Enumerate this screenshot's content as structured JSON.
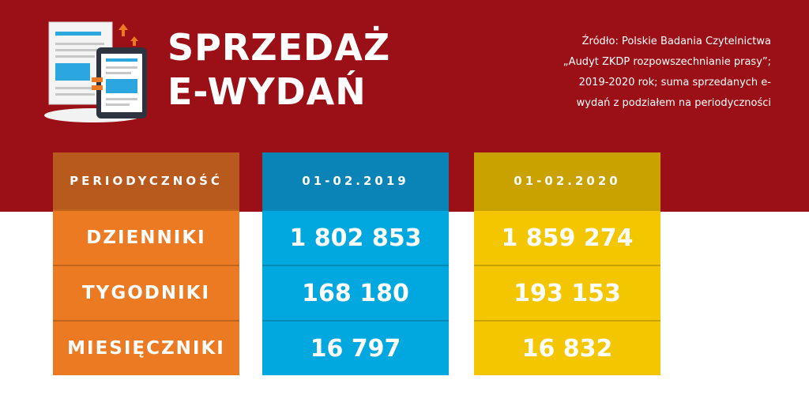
{
  "title": {
    "line1": "SPRZEDAŻ",
    "line2": "E-WYDAŃ"
  },
  "source": {
    "lines": [
      "Źródło: Polskie Badania Czytelnictwa",
      "„Audyt ZKDP rozpowszechnianie prasy”;",
      "2019-2020 rok; suma sprzedanych e-",
      "wydań z podziałem na periodyczności"
    ]
  },
  "colors": {
    "background": "#9b0f16",
    "orange": "#ec7a22",
    "blue": "#00a8df",
    "yellow": "#f3c600"
  },
  "icon": "newspaper-tablet-icon",
  "chart_data": {
    "type": "table",
    "columns": [
      "PERIODYCZNOŚĆ",
      "01-02.2019",
      "01-02.2020"
    ],
    "rows": [
      [
        "DZIENNIKI",
        "1 802 853",
        "1 859 274"
      ],
      [
        "TYGODNIKI",
        "168 180",
        "193 153"
      ],
      [
        "MIESIĘCZNIKI",
        "16 797",
        "16 832"
      ]
    ],
    "values": {
      "01-02.2019": [
        1802853,
        168180,
        16797
      ],
      "01-02.2020": [
        1859274,
        193153,
        16832
      ]
    }
  }
}
